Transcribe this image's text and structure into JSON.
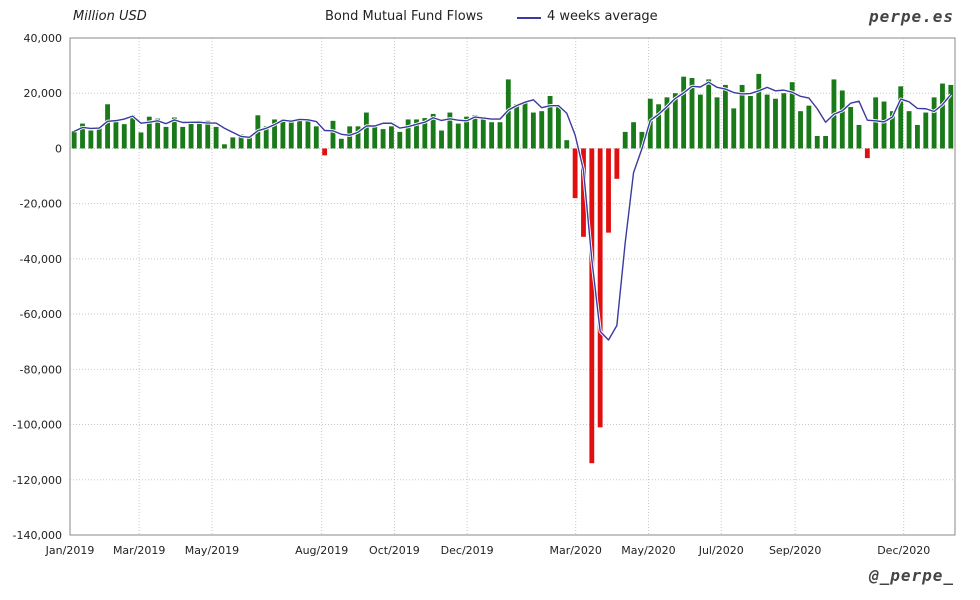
{
  "header": {
    "unit": "Million USD",
    "brand": "perpe.es",
    "handle": "@_perpe_"
  },
  "chart_data": {
    "type": "bar",
    "title": "Bond Mutual Fund Flows",
    "ylabel": "Million USD",
    "xlabel": "",
    "ylim": [
      -140000,
      40000
    ],
    "yticks": [
      40000,
      20000,
      0,
      -20000,
      -40000,
      -60000,
      -80000,
      -100000,
      -120000,
      -140000
    ],
    "ytick_labels": [
      "40,000",
      "20,000",
      "0",
      "-20,000",
      "-40,000",
      "-60,000",
      "-80,000",
      "-100,000",
      "-120,000",
      "-140,000"
    ],
    "grid": true,
    "legend_position": "top",
    "x_start": "2019-01-02",
    "x_end": "2021-01-13",
    "x_ticks": [
      {
        "date": "2019-01-01",
        "label": "Jan/2019"
      },
      {
        "date": "2019-03-01",
        "label": "Mar/2019"
      },
      {
        "date": "2019-05-01",
        "label": "May/2019"
      },
      {
        "date": "2019-08-01",
        "label": "Aug/2019"
      },
      {
        "date": "2019-10-01",
        "label": "Oct/2019"
      },
      {
        "date": "2019-12-01",
        "label": "Dec/2019"
      },
      {
        "date": "2020-03-01",
        "label": "Mar/2020"
      },
      {
        "date": "2020-05-01",
        "label": "May/2020"
      },
      {
        "date": "2020-07-01",
        "label": "Jul/2020"
      },
      {
        "date": "2020-09-01",
        "label": "Sep/2020"
      },
      {
        "date": "2020-12-01",
        "label": "Dec/2020"
      }
    ],
    "series": [
      {
        "name": "",
        "kind": "bar",
        "positive_color": "#1a7a1a",
        "negative_color": "#e01010",
        "values": [
          6200,
          9000,
          6500,
          7800,
          16000,
          10000,
          8800,
          12000,
          5800,
          11500,
          10800,
          7800,
          11200,
          7800,
          9000,
          10000,
          10000,
          7800,
          1500,
          4000,
          5000,
          4200,
          12000,
          8000,
          10500,
          10500,
          10500,
          10500,
          10000,
          8000,
          -2500,
          10000,
          3500,
          8000,
          8000,
          13000,
          8500,
          7000,
          8000,
          6000,
          10500,
          10500,
          11000,
          12500,
          6500,
          13000,
          9000,
          11500,
          12000,
          11500,
          9500,
          9500,
          25000,
          16000,
          16500,
          13000,
          13500,
          19000,
          15500,
          3000,
          -18000,
          -32000,
          -114000,
          -101000,
          -30500,
          -11000,
          6000,
          9500,
          6000,
          18000,
          16000,
          18500,
          20000,
          26000,
          25500,
          19500,
          25000,
          18500,
          23000,
          14500,
          23000,
          19000,
          27000,
          19500,
          18000,
          20000,
          24000,
          13500,
          15500,
          4500,
          4500,
          25000,
          21000,
          15000,
          8500,
          -3500,
          18500,
          17000,
          13500,
          22500,
          13500,
          8500,
          13000,
          18500,
          23500,
          23000
        ]
      },
      {
        "name": "4 weeks average",
        "kind": "line",
        "color": "#3a3aa0",
        "values": [
          6200,
          7600,
          7233,
          7375,
          9825,
          10075,
          10650,
          11700,
          9150,
          9525,
          10025,
          8975,
          10325,
          9400,
          9450,
          9500,
          9200,
          9200,
          7325,
          5825,
          4325,
          4050,
          6425,
          7300,
          8625,
          10250,
          9875,
          10500,
          10375,
          9750,
          6500,
          6375,
          5125,
          4750,
          5875,
          8125,
          8125,
          9125,
          9125,
          7375,
          7875,
          8750,
          9500,
          11125,
          10125,
          10750,
          10250,
          10000,
          11375,
          11000,
          10625,
          10625,
          13875,
          15500,
          16750,
          17625,
          14750,
          15500,
          15500,
          12750,
          4875,
          -7875,
          -40250,
          -66250,
          -69375,
          -64125,
          -34125,
          -8750,
          -125,
          10125,
          12375,
          15125,
          18125,
          20125,
          22500,
          22250,
          24000,
          22125,
          21500,
          20250,
          19750,
          19875,
          20875,
          22125,
          20875,
          21125,
          20375,
          18875,
          18250,
          14375,
          9500,
          12375,
          13625,
          16375,
          17125,
          10250,
          10000,
          9625,
          11375,
          17875,
          16875,
          14500,
          14375,
          13375,
          15875,
          19500
        ]
      }
    ]
  }
}
